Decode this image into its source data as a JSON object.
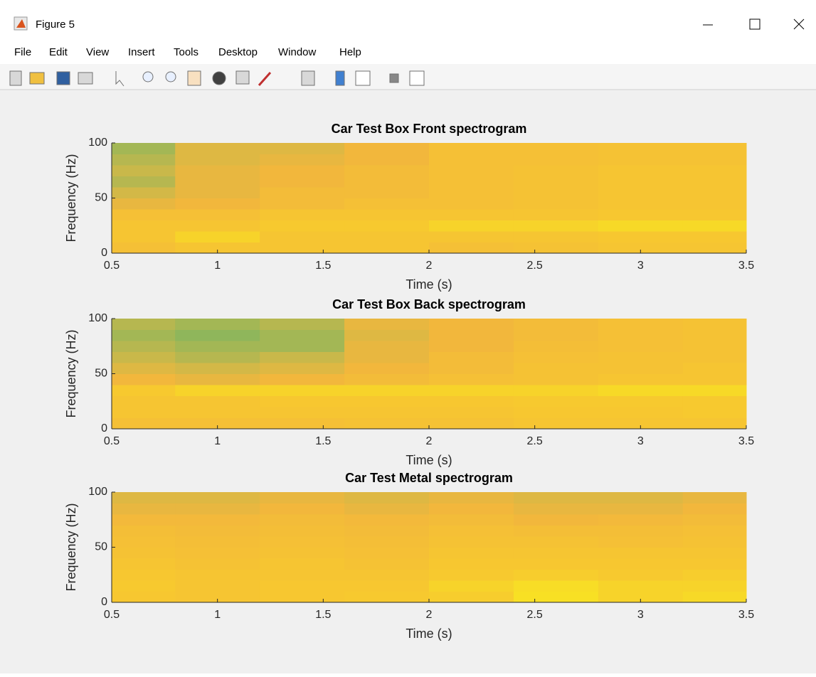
{
  "window": {
    "title": "Figure 5",
    "menu": [
      "File",
      "Edit",
      "View",
      "Insert",
      "Tools",
      "Desktop",
      "Window",
      "Help"
    ]
  },
  "chart_data": [
    {
      "type": "heatmap",
      "title": "Car Test Box Front spectrogram",
      "xlabel": "Time (s)",
      "ylabel": "Frequency (Hz)",
      "x_bins": [
        0.5,
        0.8,
        1.2,
        1.6,
        2.0,
        2.4,
        2.8,
        3.2,
        3.5
      ],
      "y_bins": [
        0,
        10,
        20,
        30,
        40,
        50,
        60,
        70,
        80,
        90,
        100
      ],
      "values": [
        [
          0.7,
          0.75,
          0.75,
          0.7,
          0.55,
          0.45,
          0.35,
          0.4,
          0.35,
          0.3
        ],
        [
          0.75,
          0.85,
          0.75,
          0.7,
          0.6,
          0.55,
          0.55,
          0.55,
          0.5,
          0.5
        ],
        [
          0.75,
          0.75,
          0.8,
          0.75,
          0.65,
          0.65,
          0.6,
          0.6,
          0.55,
          0.5
        ],
        [
          0.75,
          0.75,
          0.8,
          0.75,
          0.7,
          0.65,
          0.65,
          0.65,
          0.6,
          0.6
        ],
        [
          0.7,
          0.75,
          0.85,
          0.75,
          0.7,
          0.7,
          0.7,
          0.7,
          0.7,
          0.7
        ],
        [
          0.72,
          0.75,
          0.85,
          0.75,
          0.72,
          0.72,
          0.72,
          0.72,
          0.7,
          0.7
        ],
        [
          0.75,
          0.78,
          0.88,
          0.78,
          0.75,
          0.75,
          0.75,
          0.75,
          0.72,
          0.72
        ],
        [
          0.75,
          0.78,
          0.88,
          0.78,
          0.75,
          0.75,
          0.75,
          0.75,
          0.72,
          0.72
        ]
      ],
      "xlim": [
        0.5,
        3.5
      ],
      "ylim": [
        0,
        100
      ],
      "xticks": [
        0.5,
        1,
        1.5,
        2,
        2.5,
        3,
        3.5
      ],
      "yticks": [
        0,
        50,
        100
      ],
      "colormap": [
        "#22a38a",
        "#7cb560",
        "#c9b84a",
        "#f2b73c",
        "#f7c92f",
        "#f8f01c"
      ]
    },
    {
      "type": "heatmap",
      "title": "Car Test Box Back spectrogram",
      "xlabel": "Time (s)",
      "ylabel": "Frequency (Hz)",
      "x_bins": [
        0.5,
        0.8,
        1.2,
        1.6,
        2.0,
        2.4,
        2.8,
        3.2,
        3.5
      ],
      "y_bins": [
        0,
        10,
        20,
        30,
        40,
        50,
        60,
        70,
        80,
        90,
        100
      ],
      "values": [
        [
          0.7,
          0.75,
          0.75,
          0.8,
          0.6,
          0.5,
          0.4,
          0.35,
          0.3,
          0.35
        ],
        [
          0.7,
          0.75,
          0.75,
          0.85,
          0.55,
          0.45,
          0.35,
          0.3,
          0.25,
          0.3
        ],
        [
          0.7,
          0.75,
          0.78,
          0.85,
          0.6,
          0.5,
          0.4,
          0.3,
          0.3,
          0.35
        ],
        [
          0.72,
          0.75,
          0.78,
          0.85,
          0.65,
          0.6,
          0.55,
          0.55,
          0.5,
          0.55
        ],
        [
          0.72,
          0.75,
          0.78,
          0.85,
          0.7,
          0.65,
          0.65,
          0.6,
          0.6,
          0.6
        ],
        [
          0.75,
          0.78,
          0.8,
          0.85,
          0.72,
          0.72,
          0.7,
          0.68,
          0.65,
          0.65
        ],
        [
          0.75,
          0.78,
          0.8,
          0.88,
          0.75,
          0.72,
          0.72,
          0.7,
          0.7,
          0.7
        ],
        [
          0.75,
          0.8,
          0.8,
          0.88,
          0.75,
          0.75,
          0.72,
          0.72,
          0.72,
          0.72
        ]
      ],
      "xlim": [
        0.5,
        3.5
      ],
      "ylim": [
        0,
        100
      ],
      "xticks": [
        0.5,
        1,
        1.5,
        2,
        2.5,
        3,
        3.5
      ],
      "yticks": [
        0,
        50,
        100
      ],
      "colormap": [
        "#22a38a",
        "#7cb560",
        "#c9b84a",
        "#f2b73c",
        "#f7c92f",
        "#f8f01c"
      ]
    },
    {
      "type": "heatmap",
      "title": "Car Test Metal spectrogram",
      "xlabel": "Time (s)",
      "ylabel": "Frequency (Hz)",
      "x_bins": [
        0.5,
        0.8,
        1.2,
        1.6,
        2.0,
        2.4,
        2.8,
        3.2,
        3.5
      ],
      "y_bins": [
        0,
        10,
        20,
        30,
        40,
        50,
        60,
        70,
        80,
        90,
        100
      ],
      "values": [
        [
          0.78,
          0.8,
          0.78,
          0.75,
          0.72,
          0.7,
          0.68,
          0.62,
          0.55,
          0.5
        ],
        [
          0.75,
          0.75,
          0.75,
          0.72,
          0.7,
          0.68,
          0.65,
          0.62,
          0.55,
          0.5
        ],
        [
          0.78,
          0.78,
          0.75,
          0.75,
          0.72,
          0.7,
          0.68,
          0.65,
          0.6,
          0.55
        ],
        [
          0.8,
          0.78,
          0.75,
          0.72,
          0.7,
          0.68,
          0.65,
          0.62,
          0.55,
          0.5
        ],
        [
          0.82,
          0.85,
          0.8,
          0.78,
          0.75,
          0.72,
          0.7,
          0.65,
          0.6,
          0.55
        ],
        [
          0.92,
          0.9,
          0.82,
          0.78,
          0.75,
          0.72,
          0.68,
          0.6,
          0.55,
          0.5
        ],
        [
          0.85,
          0.85,
          0.8,
          0.78,
          0.75,
          0.7,
          0.68,
          0.62,
          0.55,
          0.5
        ],
        [
          0.88,
          0.85,
          0.82,
          0.78,
          0.75,
          0.72,
          0.7,
          0.65,
          0.6,
          0.55
        ]
      ],
      "xlim": [
        0.5,
        3.5
      ],
      "ylim": [
        0,
        100
      ],
      "xticks": [
        0.5,
        1,
        1.5,
        2,
        2.5,
        3,
        3.5
      ],
      "yticks": [
        0,
        50,
        100
      ],
      "colormap": [
        "#22a38a",
        "#7cb560",
        "#c9b84a",
        "#f2b73c",
        "#f7c92f",
        "#f8f01c"
      ]
    }
  ]
}
